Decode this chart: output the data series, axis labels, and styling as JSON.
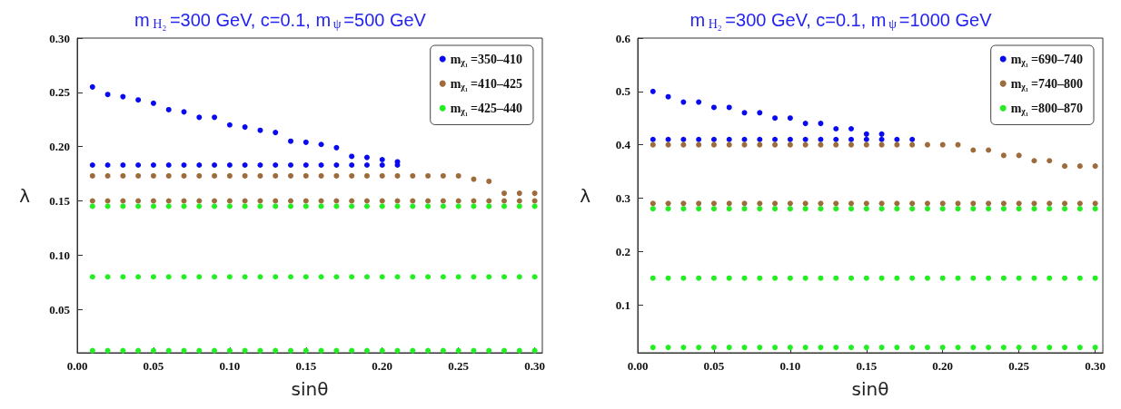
{
  "chart_data": [
    {
      "type": "scatter",
      "title": "m$_{H₂}$=300 GeV, c=0.1, m$_{ψ}$=500 GeV",
      "xlabel": "sinθ",
      "ylabel": "λ",
      "marker": "circle",
      "legend": "top right",
      "grid": false,
      "xlim": [
        0,
        0.305
      ],
      "xticks": [
        {
          "value": 0,
          "label": "0.00"
        },
        0.05,
        {
          "value": 0.1,
          "label": "0.10"
        },
        0.15,
        {
          "value": 0.2,
          "label": "0.20"
        },
        0.25,
        {
          "value": 0.3,
          "label": "0.30"
        }
      ],
      "ylim": [
        0.01,
        0.3
      ],
      "yticks": [
        0.05,
        {
          "value": 0.1,
          "label": "0.10"
        },
        0.15,
        {
          "value": 0.2,
          "label": "0.20"
        },
        0.25,
        {
          "value": 0.3,
          "label": "0.30"
        }
      ],
      "series": [
        {
          "name": "m$_{χ₁}$=350–410",
          "color": "#0a0af0",
          "x": [
            0.01,
            0.01,
            0.02,
            0.02,
            0.03,
            0.03,
            0.04,
            0.04,
            0.05,
            0.05,
            0.06,
            0.06,
            0.07,
            0.07,
            0.08,
            0.08,
            0.09,
            0.09,
            0.1,
            0.1,
            0.11,
            0.11,
            0.12,
            0.12,
            0.13,
            0.13,
            0.14,
            0.14,
            0.15,
            0.15,
            0.16,
            0.16,
            0.17,
            0.17,
            0.18,
            0.18,
            0.19,
            0.19,
            0.2,
            0.2,
            0.21,
            0.21
          ],
          "values": [
            0.255,
            0.183,
            0.248,
            0.183,
            0.246,
            0.183,
            0.243,
            0.183,
            0.24,
            0.183,
            0.234,
            0.183,
            0.232,
            0.183,
            0.227,
            0.183,
            0.227,
            0.183,
            0.22,
            0.183,
            0.218,
            0.183,
            0.215,
            0.183,
            0.213,
            0.183,
            0.205,
            0.183,
            0.204,
            0.183,
            0.202,
            0.183,
            0.199,
            0.183,
            0.191,
            0.183,
            0.19,
            0.183,
            0.188,
            0.183,
            0.186,
            0.183
          ]
        },
        {
          "name": "m$_{χ₁}$=410–425",
          "color": "#9e6b3c",
          "x": [
            0.01,
            0.01,
            0.02,
            0.02,
            0.03,
            0.03,
            0.04,
            0.04,
            0.05,
            0.05,
            0.06,
            0.06,
            0.07,
            0.07,
            0.08,
            0.08,
            0.09,
            0.09,
            0.1,
            0.1,
            0.11,
            0.11,
            0.12,
            0.12,
            0.13,
            0.13,
            0.14,
            0.14,
            0.15,
            0.15,
            0.16,
            0.16,
            0.17,
            0.17,
            0.18,
            0.18,
            0.19,
            0.19,
            0.2,
            0.2,
            0.21,
            0.21,
            0.22,
            0.22,
            0.23,
            0.23,
            0.24,
            0.24,
            0.25,
            0.25,
            0.26,
            0.26,
            0.27,
            0.27,
            0.28,
            0.28,
            0.29,
            0.29,
            0.3,
            0.3
          ],
          "values": [
            0.173,
            0.15,
            0.173,
            0.15,
            0.173,
            0.15,
            0.173,
            0.15,
            0.173,
            0.15,
            0.173,
            0.15,
            0.173,
            0.15,
            0.173,
            0.15,
            0.173,
            0.15,
            0.173,
            0.15,
            0.173,
            0.15,
            0.173,
            0.15,
            0.173,
            0.15,
            0.173,
            0.15,
            0.173,
            0.15,
            0.173,
            0.15,
            0.173,
            0.15,
            0.173,
            0.15,
            0.173,
            0.15,
            0.173,
            0.15,
            0.173,
            0.15,
            0.173,
            0.15,
            0.173,
            0.15,
            0.173,
            0.15,
            0.173,
            0.15,
            0.17,
            0.15,
            0.168,
            0.15,
            0.157,
            0.15,
            0.157,
            0.15,
            0.157,
            0.15
          ]
        },
        {
          "name": "m$_{χ₁}$=425–440",
          "color": "#22ee22",
          "x": [
            0.01,
            0.01,
            0.01,
            0.02,
            0.02,
            0.02,
            0.03,
            0.03,
            0.03,
            0.04,
            0.04,
            0.04,
            0.05,
            0.05,
            0.05,
            0.06,
            0.06,
            0.06,
            0.07,
            0.07,
            0.07,
            0.08,
            0.08,
            0.08,
            0.09,
            0.09,
            0.09,
            0.1,
            0.1,
            0.1,
            0.11,
            0.11,
            0.11,
            0.12,
            0.12,
            0.12,
            0.13,
            0.13,
            0.13,
            0.14,
            0.14,
            0.14,
            0.15,
            0.15,
            0.15,
            0.16,
            0.16,
            0.16,
            0.17,
            0.17,
            0.17,
            0.18,
            0.18,
            0.18,
            0.19,
            0.19,
            0.19,
            0.2,
            0.2,
            0.2,
            0.21,
            0.21,
            0.21,
            0.22,
            0.22,
            0.22,
            0.23,
            0.23,
            0.23,
            0.24,
            0.24,
            0.24,
            0.25,
            0.25,
            0.25,
            0.26,
            0.26,
            0.26,
            0.27,
            0.27,
            0.27,
            0.28,
            0.28,
            0.28,
            0.29,
            0.29,
            0.29,
            0.3,
            0.3,
            0.3
          ],
          "values": [
            0.145,
            0.08,
            0.012,
            0.145,
            0.08,
            0.012,
            0.145,
            0.08,
            0.012,
            0.145,
            0.08,
            0.012,
            0.145,
            0.08,
            0.012,
            0.145,
            0.08,
            0.012,
            0.145,
            0.08,
            0.012,
            0.145,
            0.08,
            0.012,
            0.145,
            0.08,
            0.012,
            0.145,
            0.08,
            0.012,
            0.145,
            0.08,
            0.012,
            0.145,
            0.08,
            0.012,
            0.145,
            0.08,
            0.012,
            0.145,
            0.08,
            0.012,
            0.145,
            0.08,
            0.012,
            0.145,
            0.08,
            0.012,
            0.145,
            0.08,
            0.012,
            0.145,
            0.08,
            0.012,
            0.145,
            0.08,
            0.012,
            0.145,
            0.08,
            0.012,
            0.145,
            0.08,
            0.012,
            0.145,
            0.08,
            0.012,
            0.145,
            0.08,
            0.012,
            0.145,
            0.08,
            0.012,
            0.145,
            0.08,
            0.012,
            0.145,
            0.08,
            0.012,
            0.145,
            0.08,
            0.012,
            0.145,
            0.08,
            0.012,
            0.145,
            0.08,
            0.012,
            0.145,
            0.08,
            0.012
          ]
        }
      ]
    },
    {
      "type": "scatter",
      "title": "m$_{H₂}$=300 GeV, c=0.1, m$_{ψ}$=1000 GeV",
      "xlabel": "sinθ",
      "ylabel": "λ",
      "marker": "circle",
      "legend": "top right",
      "grid": false,
      "xlim": [
        0,
        0.305
      ],
      "xticks": [
        {
          "value": 0,
          "label": "0.00"
        },
        0.05,
        {
          "value": 0.1,
          "label": "0.10"
        },
        0.15,
        {
          "value": 0.2,
          "label": "0.20"
        },
        0.25,
        {
          "value": 0.3,
          "label": "0.30"
        }
      ],
      "ylim": [
        0.01,
        0.6
      ],
      "yticks": [
        0.1,
        0.2,
        0.3,
        0.4,
        0.5,
        0.6
      ],
      "series": [
        {
          "name": "m$_{χ₁}$=690–740",
          "color": "#0a0af0",
          "x": [
            0.01,
            0.01,
            0.02,
            0.02,
            0.03,
            0.03,
            0.04,
            0.04,
            0.05,
            0.05,
            0.06,
            0.06,
            0.07,
            0.07,
            0.08,
            0.08,
            0.09,
            0.09,
            0.1,
            0.1,
            0.11,
            0.11,
            0.12,
            0.12,
            0.13,
            0.13,
            0.14,
            0.14,
            0.15,
            0.15,
            0.16,
            0.16,
            0.17,
            0.18
          ],
          "values": [
            0.5,
            0.41,
            0.49,
            0.41,
            0.48,
            0.41,
            0.48,
            0.41,
            0.47,
            0.41,
            0.47,
            0.41,
            0.46,
            0.41,
            0.46,
            0.41,
            0.45,
            0.41,
            0.45,
            0.41,
            0.44,
            0.41,
            0.44,
            0.41,
            0.43,
            0.41,
            0.43,
            0.41,
            0.42,
            0.41,
            0.42,
            0.41,
            0.41,
            0.41
          ]
        },
        {
          "name": "m$_{χ₁}$=740–800",
          "color": "#9e6b3c",
          "x": [
            0.01,
            0.01,
            0.02,
            0.02,
            0.03,
            0.03,
            0.04,
            0.04,
            0.05,
            0.05,
            0.06,
            0.06,
            0.07,
            0.07,
            0.08,
            0.08,
            0.09,
            0.09,
            0.1,
            0.1,
            0.11,
            0.11,
            0.12,
            0.12,
            0.13,
            0.13,
            0.14,
            0.14,
            0.15,
            0.15,
            0.16,
            0.16,
            0.17,
            0.17,
            0.18,
            0.18,
            0.19,
            0.19,
            0.2,
            0.2,
            0.21,
            0.21,
            0.22,
            0.22,
            0.23,
            0.23,
            0.24,
            0.24,
            0.25,
            0.25,
            0.26,
            0.26,
            0.27,
            0.27,
            0.28,
            0.28,
            0.29,
            0.29,
            0.3,
            0.3
          ],
          "values": [
            0.4,
            0.29,
            0.4,
            0.29,
            0.4,
            0.29,
            0.4,
            0.29,
            0.4,
            0.29,
            0.4,
            0.29,
            0.4,
            0.29,
            0.4,
            0.29,
            0.4,
            0.29,
            0.4,
            0.29,
            0.4,
            0.29,
            0.4,
            0.29,
            0.4,
            0.29,
            0.4,
            0.29,
            0.4,
            0.29,
            0.4,
            0.29,
            0.4,
            0.29,
            0.4,
            0.29,
            0.4,
            0.29,
            0.4,
            0.29,
            0.4,
            0.29,
            0.39,
            0.29,
            0.39,
            0.29,
            0.38,
            0.29,
            0.38,
            0.29,
            0.37,
            0.29,
            0.37,
            0.29,
            0.36,
            0.29,
            0.36,
            0.29,
            0.36,
            0.29
          ]
        },
        {
          "name": "m$_{χ₁}$=800–870",
          "color": "#22ee22",
          "x": [
            0.01,
            0.01,
            0.01,
            0.02,
            0.02,
            0.02,
            0.03,
            0.03,
            0.03,
            0.04,
            0.04,
            0.04,
            0.05,
            0.05,
            0.05,
            0.06,
            0.06,
            0.06,
            0.07,
            0.07,
            0.07,
            0.08,
            0.08,
            0.08,
            0.09,
            0.09,
            0.09,
            0.1,
            0.1,
            0.1,
            0.11,
            0.11,
            0.11,
            0.12,
            0.12,
            0.12,
            0.13,
            0.13,
            0.13,
            0.14,
            0.14,
            0.14,
            0.15,
            0.15,
            0.15,
            0.16,
            0.16,
            0.16,
            0.17,
            0.17,
            0.17,
            0.18,
            0.18,
            0.18,
            0.19,
            0.19,
            0.19,
            0.2,
            0.2,
            0.2,
            0.21,
            0.21,
            0.21,
            0.22,
            0.22,
            0.22,
            0.23,
            0.23,
            0.23,
            0.24,
            0.24,
            0.24,
            0.25,
            0.25,
            0.25,
            0.26,
            0.26,
            0.26,
            0.27,
            0.27,
            0.27,
            0.28,
            0.28,
            0.28,
            0.29,
            0.29,
            0.29,
            0.3,
            0.3,
            0.3
          ],
          "values": [
            0.28,
            0.15,
            0.02,
            0.28,
            0.15,
            0.02,
            0.28,
            0.15,
            0.02,
            0.28,
            0.15,
            0.02,
            0.28,
            0.15,
            0.02,
            0.28,
            0.15,
            0.02,
            0.28,
            0.15,
            0.02,
            0.28,
            0.15,
            0.02,
            0.28,
            0.15,
            0.02,
            0.28,
            0.15,
            0.02,
            0.28,
            0.15,
            0.02,
            0.28,
            0.15,
            0.02,
            0.28,
            0.15,
            0.02,
            0.28,
            0.15,
            0.02,
            0.28,
            0.15,
            0.02,
            0.28,
            0.15,
            0.02,
            0.28,
            0.15,
            0.02,
            0.28,
            0.15,
            0.02,
            0.28,
            0.15,
            0.02,
            0.28,
            0.15,
            0.02,
            0.28,
            0.15,
            0.02,
            0.28,
            0.15,
            0.02,
            0.28,
            0.15,
            0.02,
            0.28,
            0.15,
            0.02,
            0.28,
            0.15,
            0.02,
            0.28,
            0.15,
            0.02,
            0.28,
            0.15,
            0.02,
            0.28,
            0.15,
            0.02,
            0.28,
            0.15,
            0.02,
            0.28,
            0.15,
            0.02
          ]
        }
      ]
    }
  ]
}
